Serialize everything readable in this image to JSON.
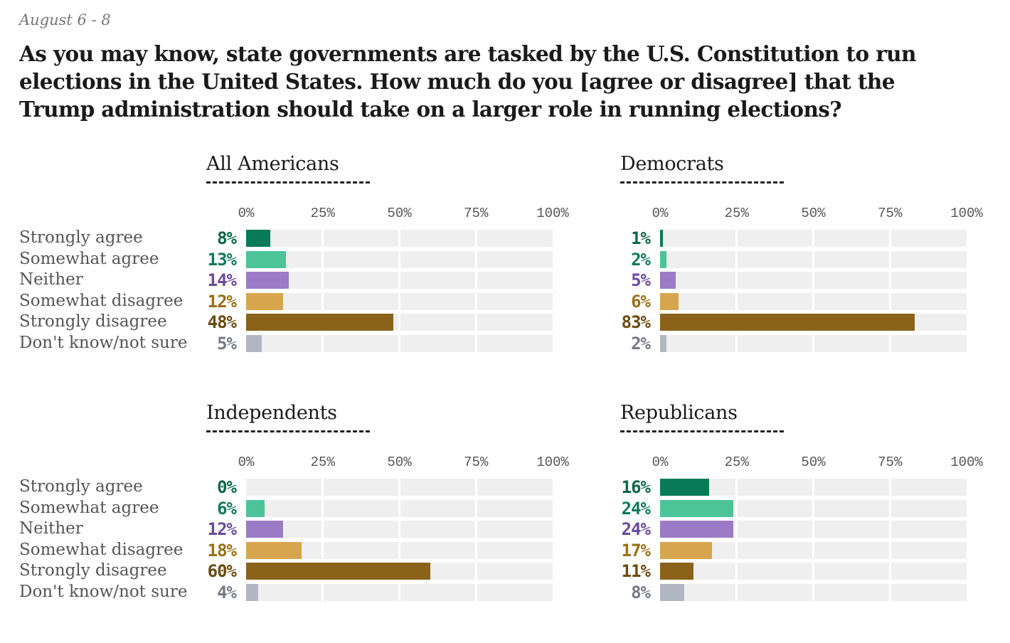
{
  "date_label": "August 6 - 8",
  "title": "As you may know, state governments are tasked by the U.S. Constitution to run elections in the United States. How much do you [agree or disagree] that the Trump administration should take on a larger role in running elections?",
  "chart_data": [
    {
      "type": "bar",
      "orientation": "horizontal",
      "title": "All Americans",
      "categories": [
        "Strongly agree",
        "Somewhat agree",
        "Neither",
        "Somewhat disagree",
        "Strongly disagree",
        "Don't know/not sure"
      ],
      "values": [
        8,
        13,
        14,
        12,
        48,
        5
      ],
      "value_labels": [
        "8%",
        "13%",
        "14%",
        "12%",
        "48%",
        "5%"
      ],
      "xlim": [
        0,
        100
      ],
      "ticks": [
        "0%",
        "25%",
        "50%",
        "75%",
        "100%"
      ],
      "grid": true
    },
    {
      "type": "bar",
      "orientation": "horizontal",
      "title": "Democrats",
      "categories": [
        "Strongly agree",
        "Somewhat agree",
        "Neither",
        "Somewhat disagree",
        "Strongly disagree",
        "Don't know/not sure"
      ],
      "values": [
        1,
        2,
        5,
        6,
        83,
        2
      ],
      "value_labels": [
        "1%",
        "2%",
        "5%",
        "6%",
        "83%",
        "2%"
      ],
      "xlim": [
        0,
        100
      ],
      "ticks": [
        "0%",
        "25%",
        "50%",
        "75%",
        "100%"
      ],
      "grid": true
    },
    {
      "type": "bar",
      "orientation": "horizontal",
      "title": "Independents",
      "categories": [
        "Strongly agree",
        "Somewhat agree",
        "Neither",
        "Somewhat disagree",
        "Strongly disagree",
        "Don't know/not sure"
      ],
      "values": [
        0,
        6,
        12,
        18,
        60,
        4
      ],
      "value_labels": [
        "0%",
        "6%",
        "12%",
        "18%",
        "60%",
        "4%"
      ],
      "xlim": [
        0,
        100
      ],
      "ticks": [
        "0%",
        "25%",
        "50%",
        "75%",
        "100%"
      ],
      "grid": true
    },
    {
      "type": "bar",
      "orientation": "horizontal",
      "title": "Republicans",
      "categories": [
        "Strongly agree",
        "Somewhat agree",
        "Neither",
        "Somewhat disagree",
        "Strongly disagree",
        "Don't know/not sure"
      ],
      "values": [
        16,
        24,
        24,
        17,
        11,
        8
      ],
      "value_labels": [
        "16%",
        "24%",
        "24%",
        "17%",
        "11%",
        "8%"
      ],
      "xlim": [
        0,
        100
      ],
      "ticks": [
        "0%",
        "25%",
        "50%",
        "75%",
        "100%"
      ],
      "grid": true
    }
  ],
  "colors": {
    "bars": [
      "#087a57",
      "#4cc497",
      "#9b7bc6",
      "#d8a54f",
      "#8a6219",
      "#b0b6c2"
    ],
    "labels": [
      "#0d6648",
      "#117a5a",
      "#6b4a9e",
      "#9a7015",
      "#6b4a10",
      "#747a86"
    ],
    "track": "#efefef"
  }
}
